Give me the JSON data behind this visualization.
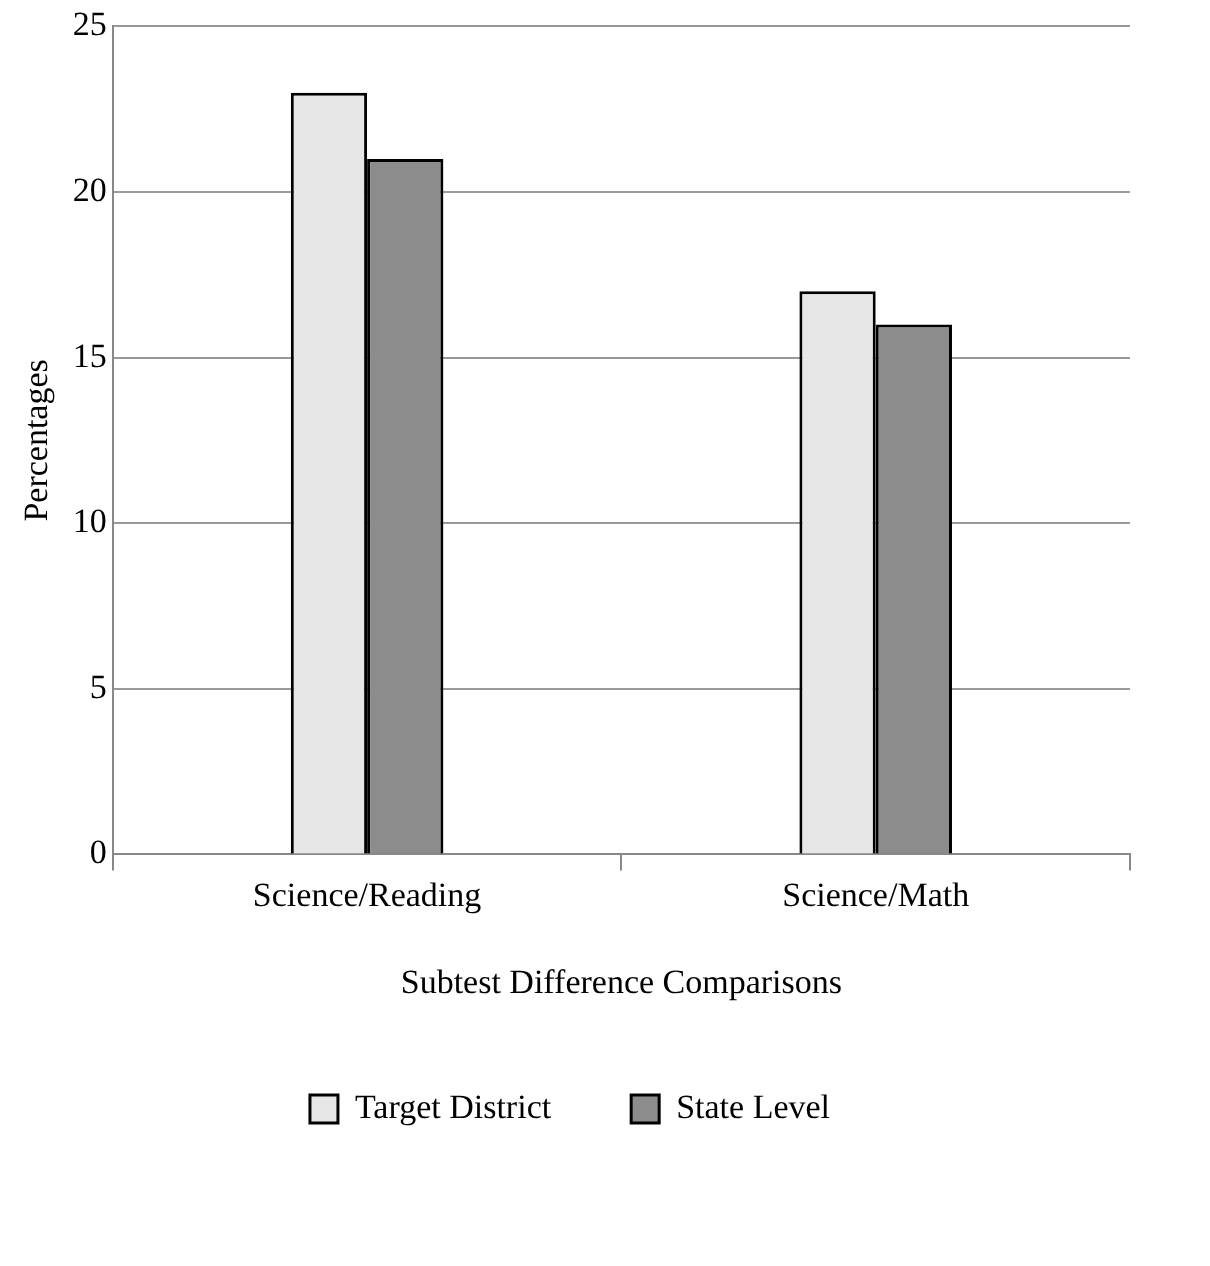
{
  "chart_data": {
    "type": "bar",
    "xlabel": "Subtest Difference Comparisons",
    "ylabel": "Percentages",
    "categories": [
      "Science/Reading",
      "Science/Math"
    ],
    "series": [
      {
        "name": "Target District",
        "color": "#e6e6e6",
        "values": [
          23,
          17
        ]
      },
      {
        "name": "State Level",
        "color": "#8c8c8c",
        "values": [
          21,
          16
        ]
      }
    ],
    "ylim": [
      0,
      25
    ],
    "yticks": [
      0,
      5,
      10,
      15,
      20,
      25
    ],
    "grid": "y",
    "legend": "bottom"
  }
}
